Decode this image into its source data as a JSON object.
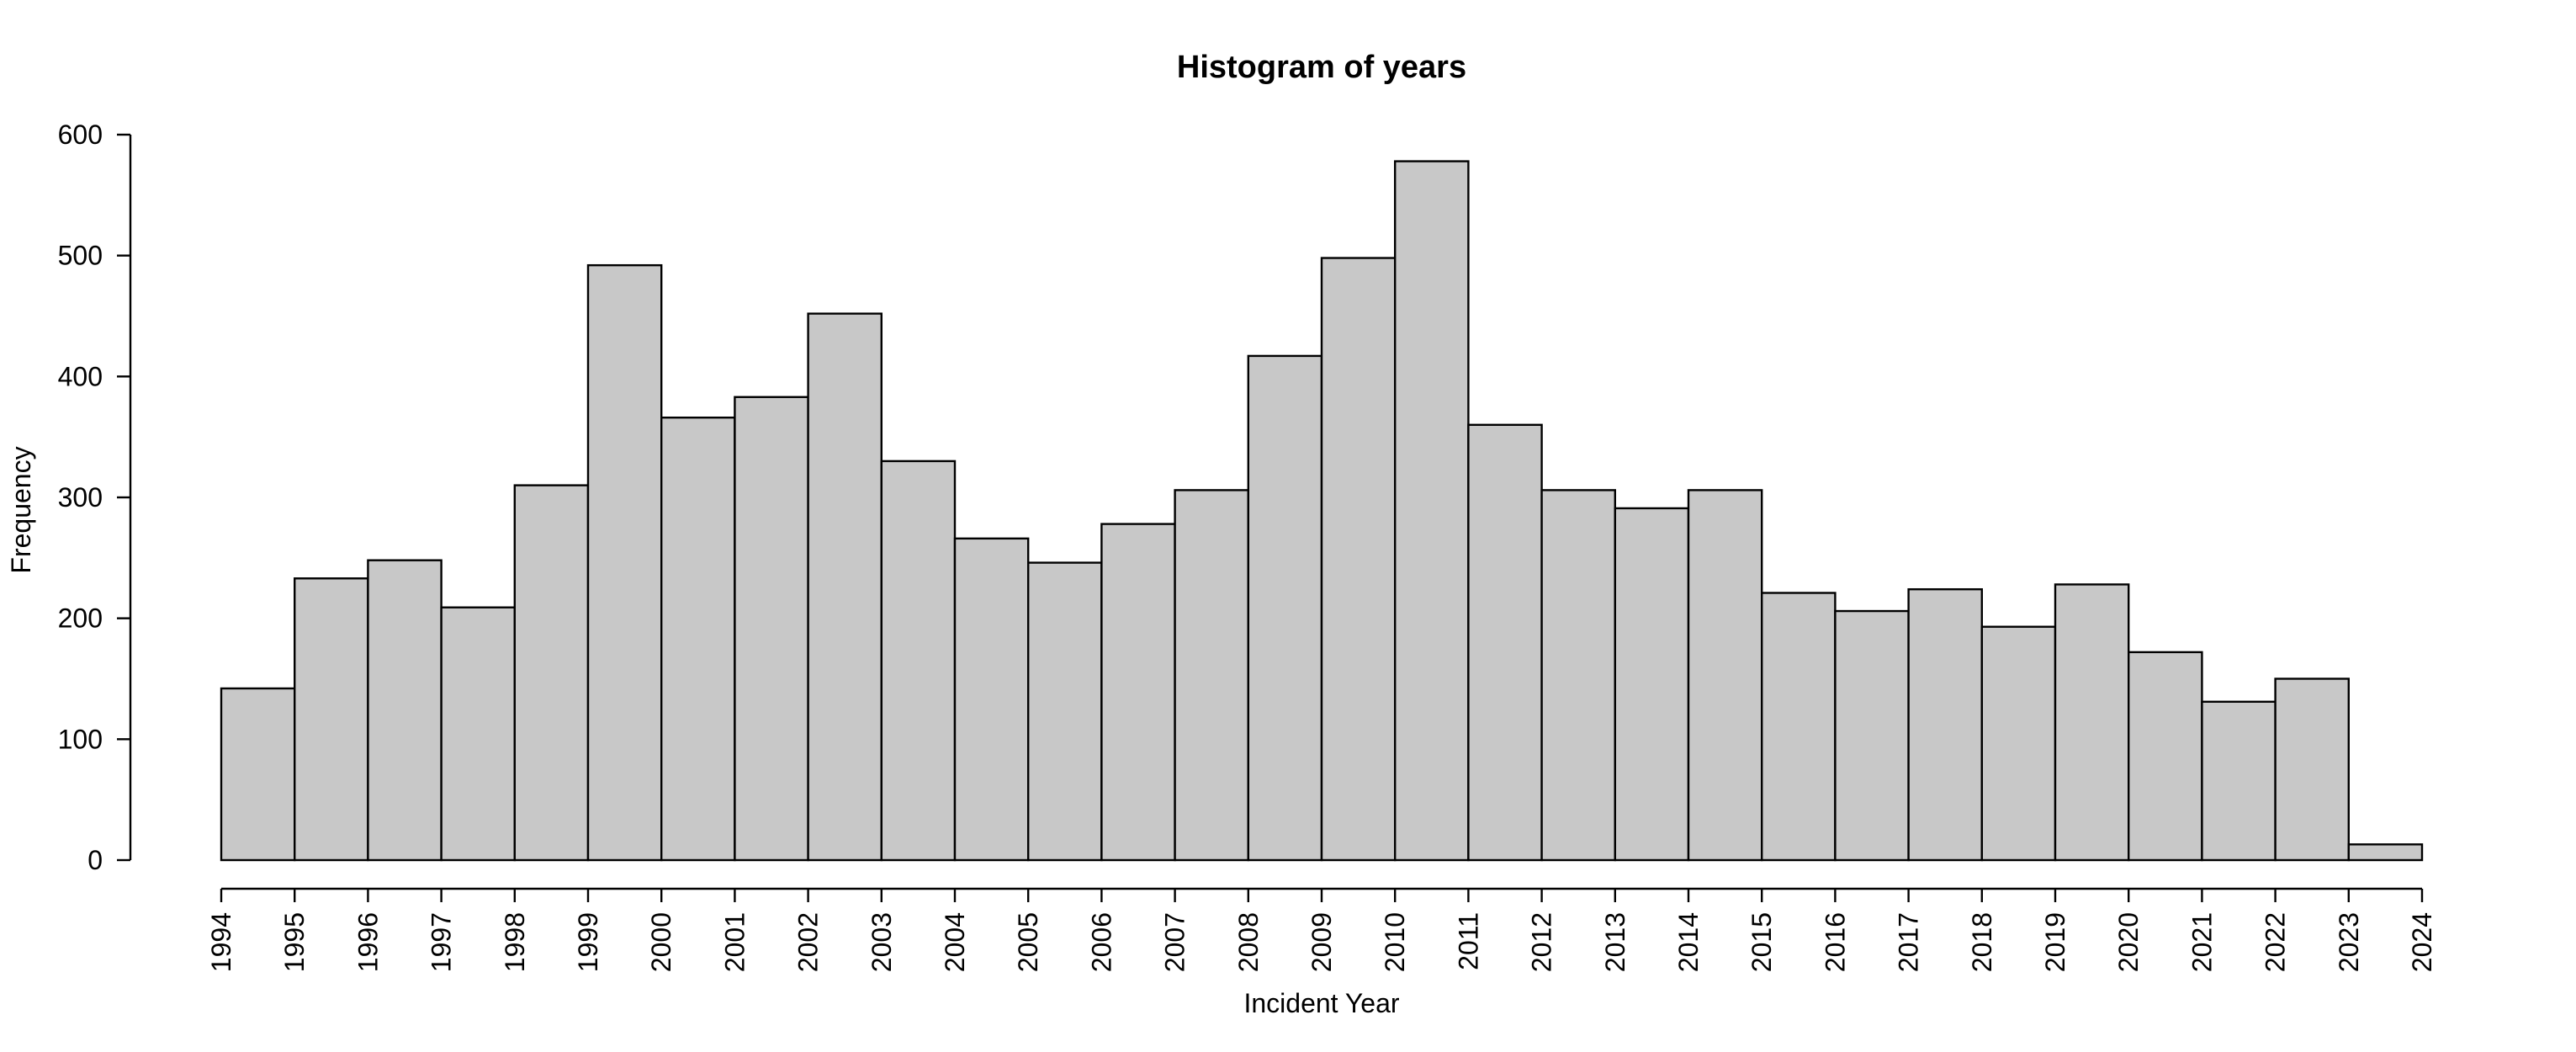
{
  "chart_data": {
    "type": "bar",
    "subtype": "histogram",
    "title": "Histogram of years",
    "xlabel": "Incident Year",
    "ylabel": "Frequency",
    "bin_edges": [
      1994,
      1995,
      1996,
      1997,
      1998,
      1999,
      2000,
      2001,
      2002,
      2003,
      2004,
      2005,
      2006,
      2007,
      2008,
      2009,
      2010,
      2011,
      2012,
      2013,
      2014,
      2015,
      2016,
      2017,
      2018,
      2019,
      2020,
      2021,
      2022,
      2023,
      2024
    ],
    "x_tick_labels": [
      "1994",
      "1995",
      "1996",
      "1997",
      "1998",
      "1999",
      "2000",
      "2001",
      "2002",
      "2003",
      "2004",
      "2005",
      "2006",
      "2007",
      "2008",
      "2009",
      "2010",
      "2011",
      "2012",
      "2013",
      "2014",
      "2015",
      "2016",
      "2017",
      "2018",
      "2019",
      "2020",
      "2021",
      "2022",
      "2023",
      "2024"
    ],
    "values": [
      142,
      233,
      248,
      209,
      310,
      492,
      366,
      383,
      452,
      330,
      266,
      246,
      278,
      306,
      417,
      498,
      578,
      360,
      306,
      291,
      306,
      221,
      206,
      224,
      193,
      228,
      172,
      131,
      150,
      13
    ],
    "y_ticks": [
      0,
      100,
      200,
      300,
      400,
      500,
      600
    ],
    "y_tick_labels": [
      "0",
      "100",
      "200",
      "300",
      "400",
      "500",
      "600"
    ],
    "xlim": [
      1994,
      2024
    ],
    "ylim": [
      0,
      600
    ],
    "grid": false,
    "legend": "none",
    "colors": {
      "bar_fill": "#c8c8c8",
      "bar_stroke": "#000000",
      "axis": "#000000",
      "background": "#ffffff"
    }
  }
}
